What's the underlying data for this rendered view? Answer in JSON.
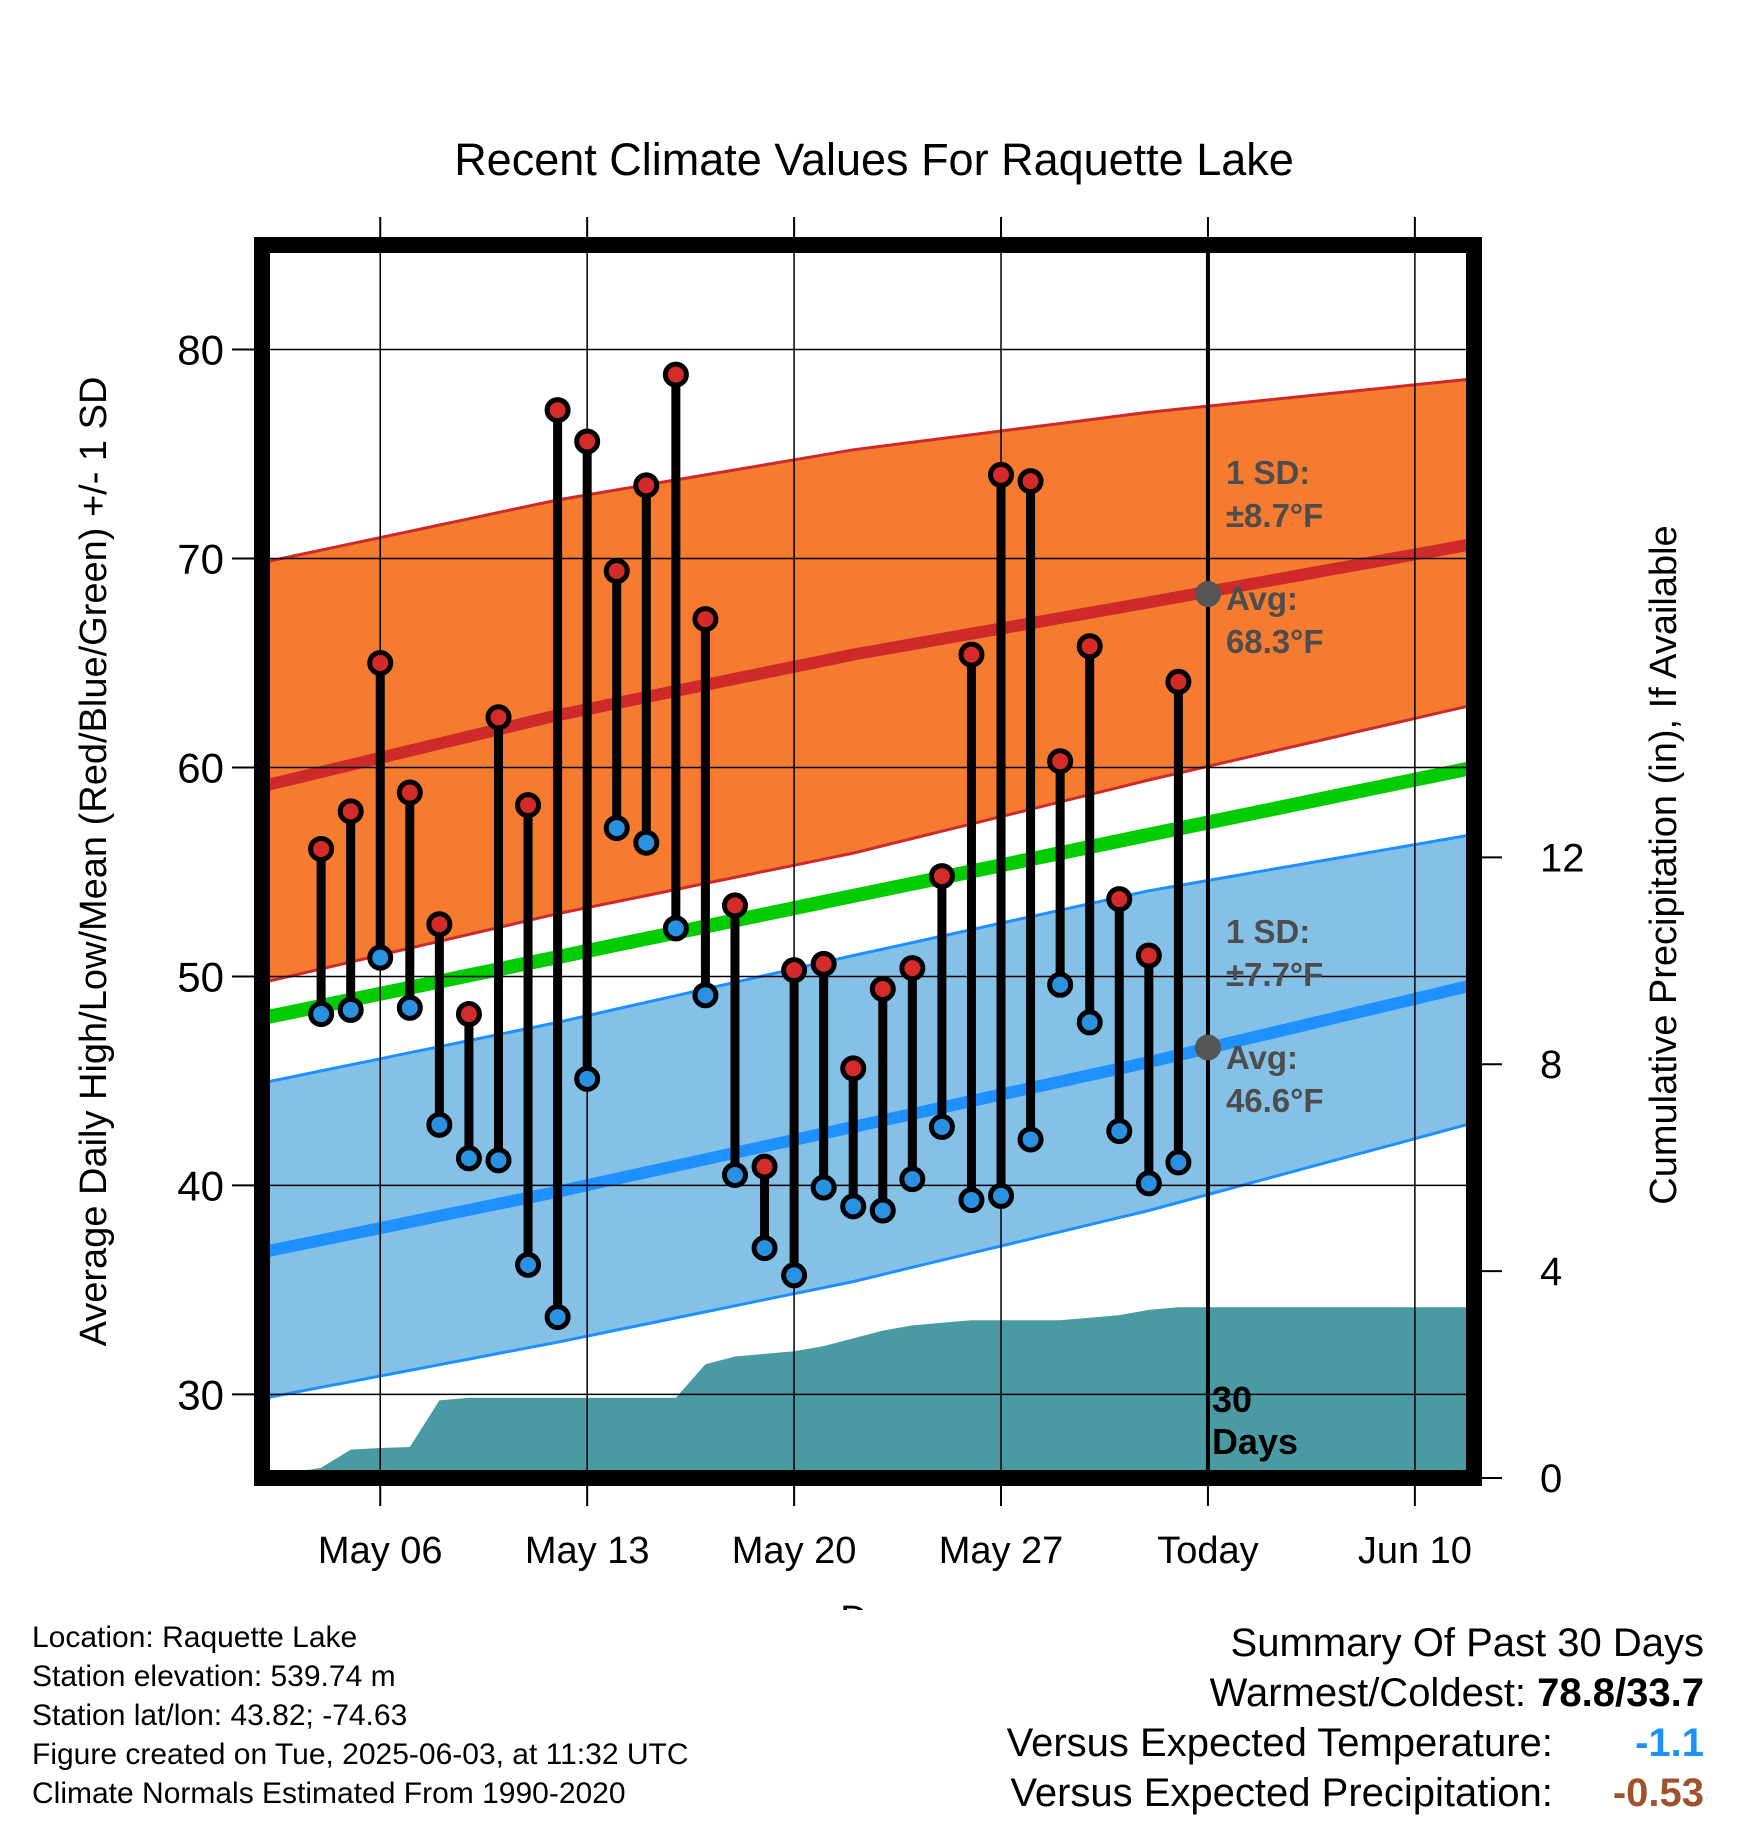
{
  "chart_data": {
    "type": "line",
    "title": "Recent Climate Values For Raquette Lake",
    "xlabel": "Day",
    "ylabel_left": "Average Daily High/Low/Mean (Red/Blue/Green) +/- 1 SD",
    "ylabel_right": "Cumulative Precipitation (in), If Available",
    "x_tick_labels": [
      "May 06",
      "May 13",
      "May 20",
      "May 27",
      "Today",
      "Jun 10"
    ],
    "x_tick_dates": [
      "2025-05-06",
      "2025-05-13",
      "2025-05-20",
      "2025-05-27",
      "2025-06-03",
      "2025-06-10"
    ],
    "x_range": [
      "2025-05-02",
      "2025-06-12"
    ],
    "y_left_ticks": [
      30,
      40,
      50,
      60,
      70,
      80
    ],
    "y_left_range": [
      26,
      85
    ],
    "y_right_ticks": [
      0,
      4,
      8,
      12
    ],
    "y_right_range": [
      0,
      23.84
    ],
    "grid": true,
    "today": "2025-06-03",
    "daily_observations": {
      "dates": [
        "2025-05-04",
        "2025-05-05",
        "2025-05-06",
        "2025-05-07",
        "2025-05-08",
        "2025-05-09",
        "2025-05-10",
        "2025-05-11",
        "2025-05-12",
        "2025-05-13",
        "2025-05-14",
        "2025-05-15",
        "2025-05-16",
        "2025-05-17",
        "2025-05-18",
        "2025-05-19",
        "2025-05-20",
        "2025-05-21",
        "2025-05-22",
        "2025-05-23",
        "2025-05-24",
        "2025-05-25",
        "2025-05-26",
        "2025-05-27",
        "2025-05-28",
        "2025-05-29",
        "2025-05-30",
        "2025-05-31",
        "2025-06-01",
        "2025-06-02"
      ],
      "high": [
        56.1,
        57.9,
        65.0,
        58.8,
        52.5,
        48.2,
        62.4,
        58.2,
        77.1,
        75.6,
        69.4,
        73.5,
        78.8,
        67.1,
        53.4,
        40.9,
        50.3,
        50.6,
        45.6,
        49.4,
        50.4,
        54.8,
        65.4,
        74.0,
        73.7,
        60.3,
        65.8,
        53.7,
        51.0,
        64.1
      ],
      "low": [
        48.2,
        48.4,
        50.9,
        48.5,
        42.9,
        41.3,
        41.2,
        36.2,
        33.7,
        45.1,
        57.1,
        56.4,
        52.3,
        49.1,
        40.5,
        37.0,
        35.7,
        39.9,
        39.0,
        38.8,
        40.3,
        42.8,
        39.3,
        39.5,
        42.2,
        49.6,
        47.8,
        42.6,
        40.1,
        41.1
      ]
    },
    "normal_high": {
      "dates": [
        "2025-05-02",
        "2025-05-12",
        "2025-05-22",
        "2025-06-01",
        "2025-06-12"
      ],
      "mean": [
        59.1,
        62.5,
        65.4,
        67.9,
        70.7
      ],
      "plus_1sd": [
        69.8,
        72.8,
        75.2,
        77.0,
        78.6
      ],
      "minus_1sd": [
        49.7,
        53.0,
        55.9,
        59.4,
        63.0
      ]
    },
    "normal_low": {
      "dates": [
        "2025-05-02",
        "2025-05-12",
        "2025-05-22",
        "2025-06-01",
        "2025-06-12"
      ],
      "mean": [
        36.8,
        39.7,
        42.8,
        45.9,
        49.6
      ],
      "plus_1sd": [
        44.9,
        47.8,
        51.0,
        54.1,
        56.8
      ],
      "minus_1sd": [
        29.8,
        32.5,
        35.4,
        38.8,
        43.0
      ]
    },
    "normal_mean": {
      "dates": [
        "2025-05-02",
        "2025-06-12"
      ],
      "values": [
        48.0,
        60.0
      ]
    },
    "cumulative_precipitation": {
      "dates": [
        "2025-05-02",
        "2025-05-03",
        "2025-05-04",
        "2025-05-05",
        "2025-05-06",
        "2025-05-07",
        "2025-05-08",
        "2025-05-09",
        "2025-05-10",
        "2025-05-11",
        "2025-05-12",
        "2025-05-13",
        "2025-05-14",
        "2025-05-15",
        "2025-05-16",
        "2025-05-17",
        "2025-05-18",
        "2025-05-19",
        "2025-05-20",
        "2025-05-21",
        "2025-05-22",
        "2025-05-23",
        "2025-05-24",
        "2025-05-25",
        "2025-05-26",
        "2025-05-27",
        "2025-05-28",
        "2025-05-29",
        "2025-05-30",
        "2025-05-31",
        "2025-06-01",
        "2025-06-02",
        "2025-06-03",
        "2025-06-12"
      ],
      "values": [
        0.0,
        0.1,
        0.2,
        0.55,
        0.58,
        0.6,
        1.5,
        1.55,
        1.55,
        1.55,
        1.55,
        1.55,
        1.55,
        1.55,
        1.55,
        2.2,
        2.35,
        2.4,
        2.45,
        2.55,
        2.7,
        2.85,
        2.95,
        3.0,
        3.05,
        3.05,
        3.05,
        3.05,
        3.1,
        3.15,
        3.25,
        3.3,
        3.3,
        3.3
      ]
    },
    "annotations": {
      "high_sd_line1": "1 SD:",
      "high_sd_line2": "±8.7°F",
      "high_avg_line1": "Avg:",
      "high_avg_line2": "68.3°F",
      "high_avg_value": 68.3,
      "low_sd_line1": "1 SD:",
      "low_sd_line2": "±7.7°F",
      "low_avg_line1": "Avg:",
      "low_avg_line2": "46.6°F",
      "low_avg_value": 46.6,
      "days_line1": "30",
      "days_line2": "Days"
    },
    "colors": {
      "high_band": "#f47b30",
      "high_line": "#cf2a2a",
      "low_band": "#85c1e6",
      "low_line": "#1e90ff",
      "mean_line": "#00cc00",
      "precip": "#4a9aa4",
      "high_dot": "#d42a2a",
      "low_dot": "#2a90e0",
      "annotation": "#4d4d4d"
    }
  },
  "footer": {
    "location": "Location: Raquette Lake",
    "elevation": "Station elevation: 539.74 m",
    "latlon": "Station lat/lon: 43.82; -74.63",
    "created": "Figure created on Tue, 2025-06-03, at 11:32 UTC",
    "normals": "Climate Normals Estimated From 1990-2020"
  },
  "summary": {
    "title": "Summary Of Past 30 Days",
    "warm_cold_label": "Warmest/Coldest:",
    "warm_cold_value": "78.8/33.7",
    "temp_label": "Versus Expected Temperature:",
    "temp_value": "-1.1",
    "temp_color": "#1e90ff",
    "precip_label": "Versus Expected Precipitation:",
    "precip_value": "-0.53",
    "precip_color": "#a0522d"
  }
}
